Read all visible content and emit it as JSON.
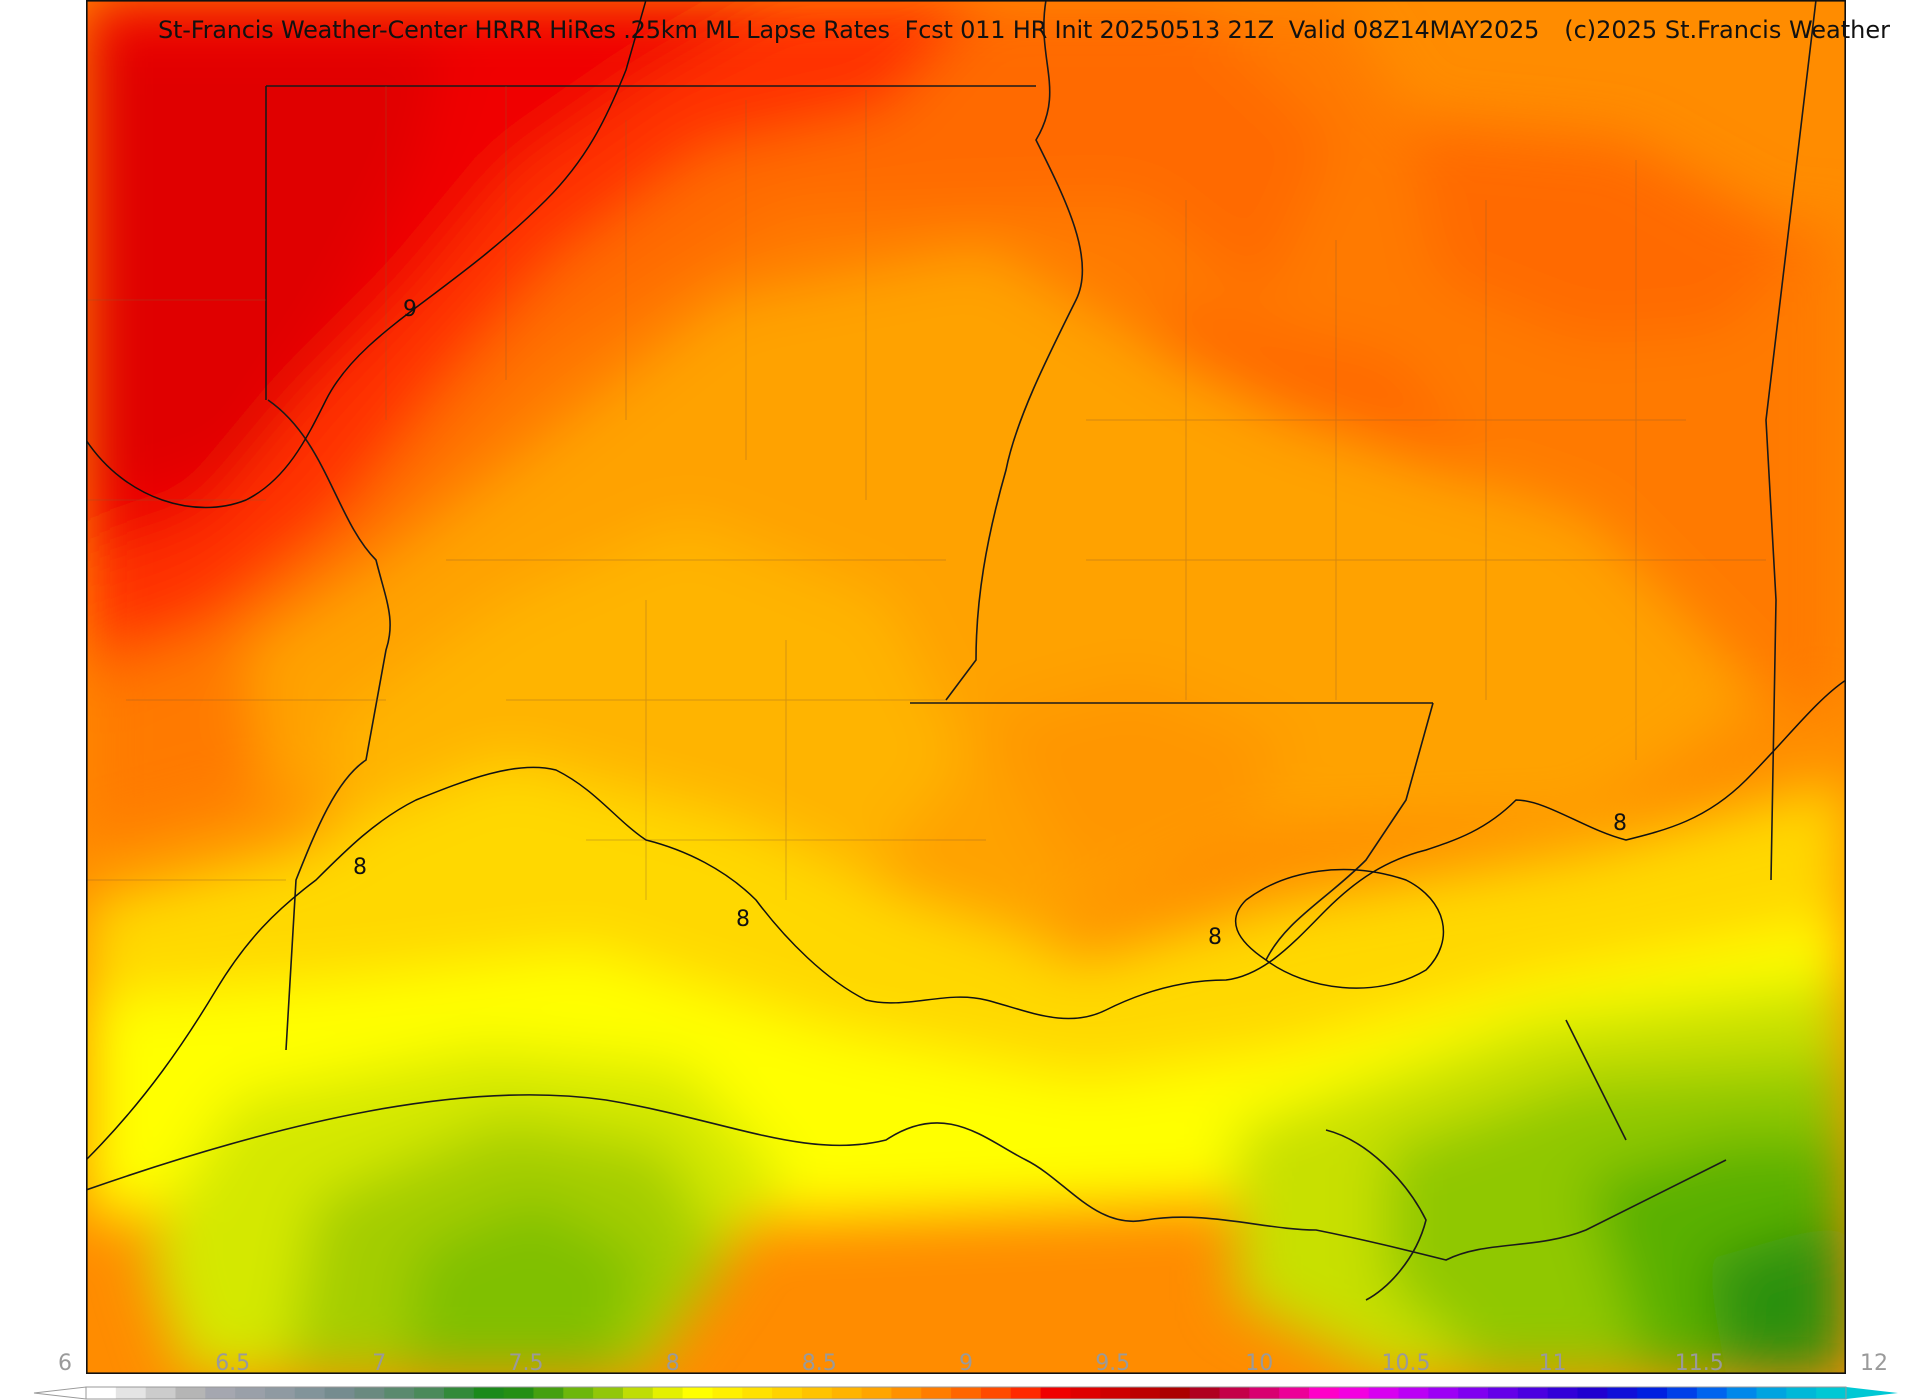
{
  "header": {
    "title": "St-Francis Weather-Center HRRR HiRes .25km ML Lapse Rates  Fcst 011 HR Init 20250513 21Z  Valid 08Z14MAY2025",
    "copyright": "(c)2025 St.Francis Weather"
  },
  "map": {
    "contour_labels": [
      "9",
      "8",
      "8",
      "8",
      "8"
    ]
  },
  "colorbar": {
    "min": 6,
    "max": 12,
    "tick_labels": [
      "6",
      "6.5",
      "7",
      "7.5",
      "8",
      "8.5",
      "9",
      "9.5",
      "10",
      "10.5",
      "11",
      "11.5",
      "12"
    ],
    "colors": [
      "#ffffff",
      "#e4e4e4",
      "#cccccc",
      "#b5b5b5",
      "#a5a7b0",
      "#9aa0a9",
      "#8f9aa2",
      "#82949a",
      "#758c8f",
      "#6a8a80",
      "#5a8a6e",
      "#4a8a5a",
      "#328a3a",
      "#1b8a1b",
      "#248f14",
      "#45a010",
      "#6db70c",
      "#92c70a",
      "#bfdd05",
      "#e4f000",
      "#ffff00",
      "#fff000",
      "#ffe100",
      "#ffd200",
      "#ffc300",
      "#ffb400",
      "#ffa500",
      "#ff9100",
      "#ff7d00",
      "#ff6600",
      "#ff4a00",
      "#ff2a00",
      "#f00000",
      "#df0000",
      "#ce0000",
      "#bd0000",
      "#ac0000",
      "#b00020",
      "#c40048",
      "#d80070",
      "#ec0098",
      "#ff00c8",
      "#f300e0",
      "#d800f0",
      "#bb00f5",
      "#9d00f5",
      "#8000f0",
      "#6400e8",
      "#4a00e0",
      "#3200d8",
      "#2000d0",
      "#1010d8",
      "#0020e0",
      "#0040e8",
      "#0064ee",
      "#0088ea",
      "#00a4e0",
      "#00b8d8",
      "#00c8d4"
    ]
  }
}
